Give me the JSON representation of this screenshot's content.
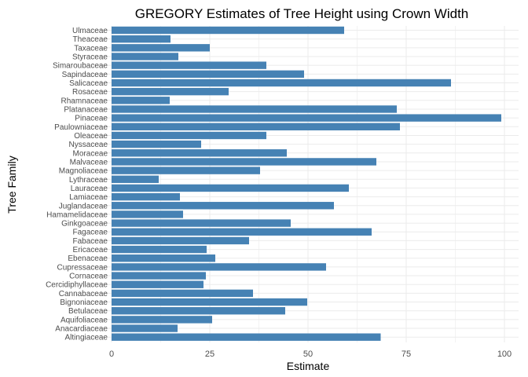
{
  "chart_data": {
    "type": "bar",
    "orientation": "horizontal",
    "title": "GREGORY Estimates of Tree Height using Crown Width",
    "xlabel": "Estimate",
    "ylabel": "Tree Family",
    "xlim": [
      0,
      100
    ],
    "xticks": [
      0,
      25,
      50,
      75,
      100
    ],
    "grid": true,
    "bar_color": "#4682B4",
    "categories": [
      "Ulmaceae",
      "Theaceae",
      "Taxaceae",
      "Styraceae",
      "Simaroubaceae",
      "Sapindaceae",
      "Salicaceae",
      "Rosaceae",
      "Rhamnaceae",
      "Platanaceae",
      "Pinaceae",
      "Paulowniaceae",
      "Oleaceae",
      "Nyssaceae",
      "Moraceae",
      "Malvaceae",
      "Magnoliaceae",
      "Lythraceae",
      "Lauraceae",
      "Lamiaceae",
      "Juglandaceae",
      "Hamamelidaceae",
      "Ginkgoaceae",
      "Fagaceae",
      "Fabaceae",
      "Ericaceae",
      "Ebenaceae",
      "Cupressaceae",
      "Cornaceae",
      "Cercidiphyllaceae",
      "Cannabaceae",
      "Bignoniaceae",
      "Betulaceae",
      "Aquifoliaceae",
      "Anacardiaceae",
      "Altingiaceae"
    ],
    "values": [
      59.2,
      15,
      25,
      17,
      39.4,
      49,
      86.4,
      29.8,
      14.8,
      72.6,
      99.2,
      73.4,
      39.4,
      22.8,
      44.6,
      67.4,
      37.8,
      12,
      60.4,
      17.4,
      56.6,
      18.2,
      45.6,
      66.2,
      35,
      24.2,
      26.4,
      54.6,
      24,
      23.4,
      36,
      49.8,
      44.2,
      25.6,
      16.8,
      68.5
    ]
  }
}
